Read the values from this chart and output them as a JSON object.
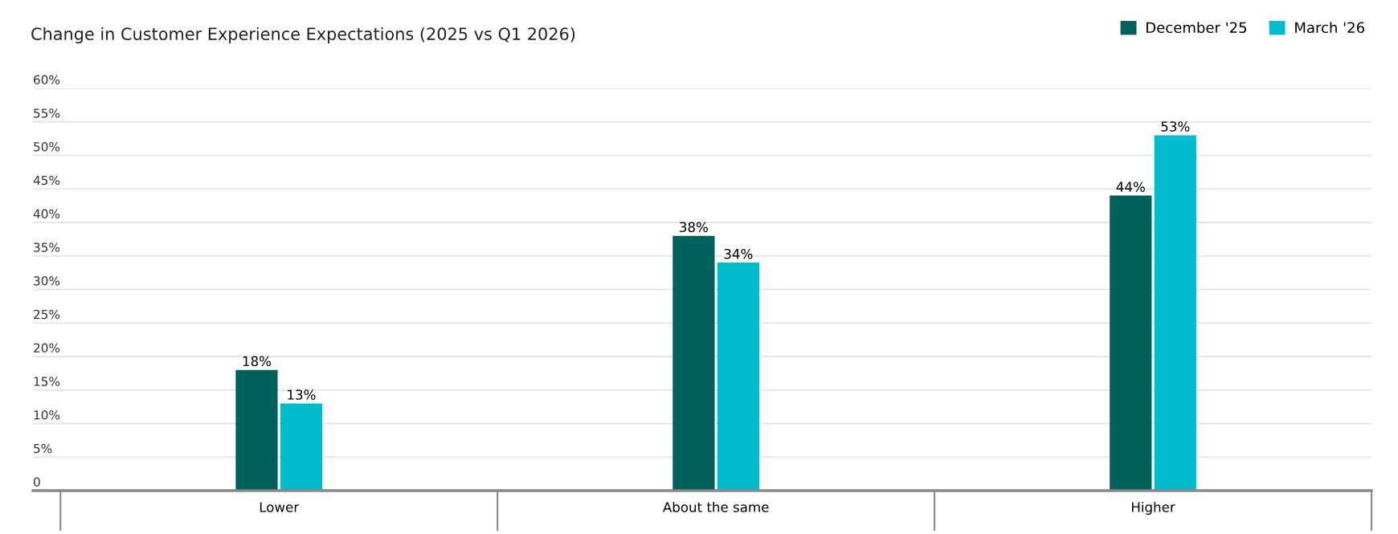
{
  "chart_data": {
    "type": "bar",
    "title": "Change in Customer Experience Expectations (2025 vs Q1 2026)",
    "categories": [
      "Lower",
      "About the same",
      "Higher"
    ],
    "series": [
      {
        "name": "December '25",
        "color": "#00605a",
        "values": [
          18,
          38,
          44
        ],
        "value_labels": [
          "18%",
          "38%",
          "44%"
        ]
      },
      {
        "name": "March '26",
        "color": "#00bccc",
        "values": [
          13,
          34,
          53
        ],
        "value_labels": [
          "13%",
          "34%",
          "53%"
        ]
      }
    ],
    "ylim": [
      0,
      60
    ],
    "yticks": [
      0,
      {
        "value": 5,
        "label": "5%"
      },
      {
        "value": 10,
        "label": "10%"
      },
      {
        "value": 15,
        "label": "15%"
      },
      {
        "value": 20,
        "label": "20%"
      },
      {
        "value": 25,
        "label": "25%"
      },
      {
        "value": 30,
        "label": "30%"
      },
      {
        "value": 35,
        "label": "35%"
      },
      {
        "value": 40,
        "label": "40%"
      },
      {
        "value": 45,
        "label": "45%"
      },
      {
        "value": 50,
        "label": "50%"
      },
      {
        "value": 55,
        "label": "55%"
      },
      {
        "value": 60,
        "label": "60%"
      }
    ],
    "grid": "y",
    "legend": "top right"
  }
}
